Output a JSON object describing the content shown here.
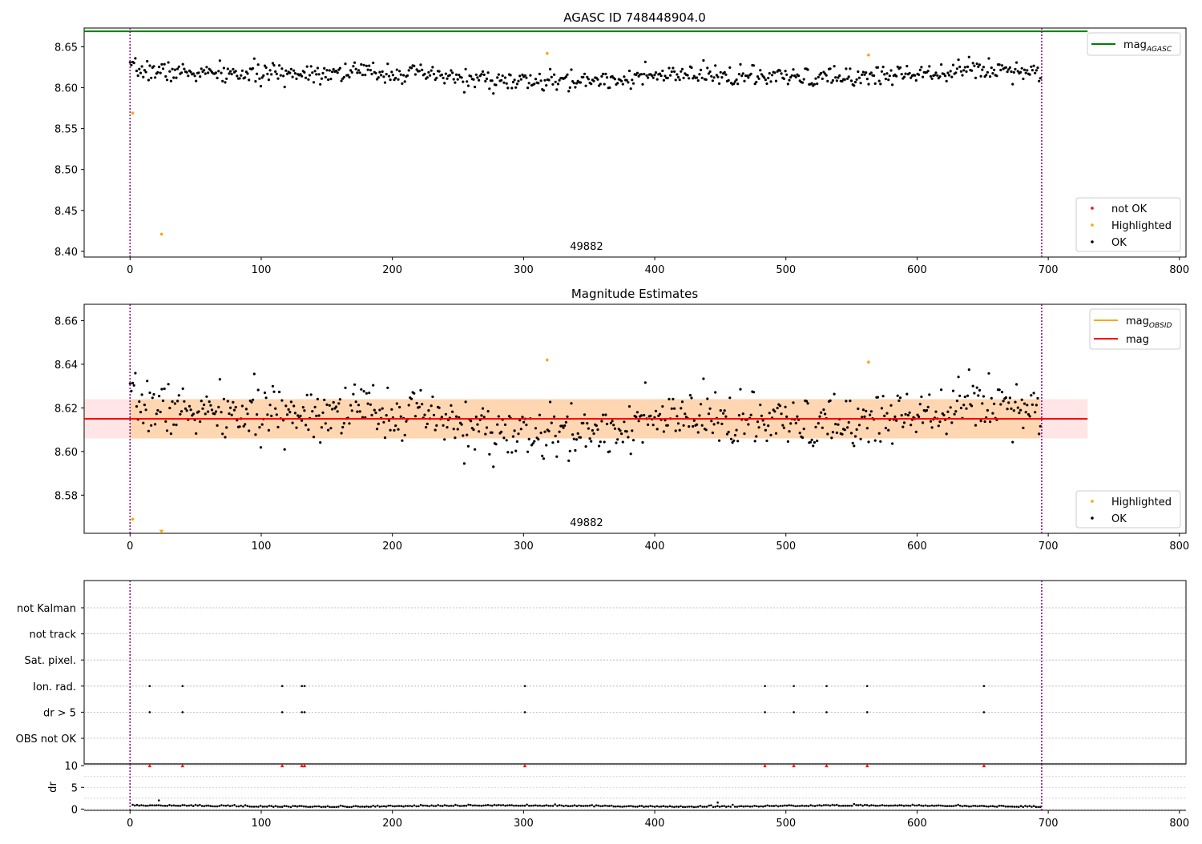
{
  "chart_data": [
    {
      "type": "scatter",
      "title": "AGASC ID 748448904.0",
      "xlim": [
        -35,
        805
      ],
      "ylim": [
        8.393,
        8.673
      ],
      "xticks": [
        0,
        100,
        200,
        300,
        400,
        500,
        600,
        700,
        800
      ],
      "yticks": [
        8.4,
        8.45,
        8.5,
        8.55,
        8.6,
        8.65
      ],
      "ytick_labels": [
        "8.40",
        "8.45",
        "8.50",
        "8.55",
        "8.60",
        "8.65"
      ],
      "annotation": "49882",
      "annotation_x": 348,
      "obs_start": 0,
      "obs_end": 695,
      "mag_agasc": {
        "value": 8.669,
        "x_range": [
          -35,
          730
        ],
        "color": "#008000"
      },
      "legend_top": {
        "entries": [
          {
            "label": "mag",
            "sub": "AGASC",
            "color": "#008000"
          }
        ]
      },
      "legend_bottom": {
        "entries": [
          {
            "label": "not OK",
            "color": "#ff0000"
          },
          {
            "label": "Highlighted",
            "color": "#ffa500"
          },
          {
            "label": "OK",
            "color": "#000000"
          }
        ]
      },
      "ok_series": {
        "x_range": [
          0,
          694
        ],
        "n": 690,
        "base": 8.614,
        "amplitude": 0.012,
        "noise": 0.006,
        "seed": 7
      },
      "highlighted": [
        [
          2,
          8.569
        ],
        [
          24,
          8.421
        ],
        [
          318,
          8.642
        ],
        [
          563,
          8.64
        ]
      ]
    },
    {
      "type": "scatter",
      "title": "Magnitude Estimates",
      "xlim": [
        -35,
        805
      ],
      "ylim": [
        8.5625,
        8.6675
      ],
      "xticks": [
        0,
        100,
        200,
        300,
        400,
        500,
        600,
        700,
        800
      ],
      "yticks": [
        8.58,
        8.6,
        8.62,
        8.64,
        8.66
      ],
      "ytick_labels": [
        "8.58",
        "8.60",
        "8.62",
        "8.64",
        "8.66"
      ],
      "annotation": "49882",
      "annotation_x": 348,
      "mag": {
        "value": 8.615,
        "x_range": [
          -35,
          730
        ],
        "color": "#ff0000"
      },
      "mag_band": {
        "low": 8.606,
        "high": 8.624,
        "x_range": [
          -35,
          730
        ]
      },
      "mag_obsid": {
        "value": 8.615,
        "low": 8.606,
        "high": 8.624,
        "x_range": [
          0,
          694
        ],
        "color": "#ffa500"
      },
      "legend_top": {
        "entries": [
          {
            "label": "mag",
            "sub": "OBSID",
            "color": "#ffa500"
          },
          {
            "label": "mag",
            "color": "#ff0000"
          }
        ]
      },
      "legend_bottom": {
        "entries": [
          {
            "label": "Highlighted",
            "color": "#ffa500"
          },
          {
            "label": "OK",
            "color": "#000000"
          }
        ]
      },
      "highlighted": [
        [
          2,
          8.569
        ],
        [
          318,
          8.642
        ],
        [
          563,
          8.641
        ]
      ],
      "highlighted_clipped": [
        [
          24,
          8.563
        ]
      ]
    },
    {
      "type": "scatter",
      "title": "",
      "xlim": [
        -35,
        805
      ],
      "flag_rows": [
        "not Kalman",
        "not track",
        "Sat. pixel.",
        "Ion. rad.",
        "dr > 5",
        "OBS not OK"
      ],
      "flag_points": {
        "Ion. rad.": [
          15,
          40,
          116,
          131,
          133,
          301,
          484,
          506,
          531,
          562,
          651
        ],
        "dr > 5": [
          15,
          40,
          116,
          131,
          133,
          301,
          484,
          506,
          531,
          562,
          651
        ]
      }
    },
    {
      "type": "scatter",
      "title": "",
      "xlim": [
        -35,
        805
      ],
      "ylim": [
        -0.3,
        10.4
      ],
      "xticks": [
        0,
        100,
        200,
        300,
        400,
        500,
        600,
        700,
        800
      ],
      "yticks": [
        0,
        5,
        10
      ],
      "ytick_labels": [
        "0",
        "5",
        "10"
      ],
      "ylabel": "dr",
      "dr_series": {
        "x_range": [
          2,
          694
        ],
        "n": 420,
        "base": 0.7,
        "noise": 0.25,
        "seed": 13
      },
      "dr_extras": [
        [
          22,
          2.0
        ],
        [
          448,
          1.5
        ]
      ],
      "clipped_x": [
        15,
        40,
        116,
        131,
        133,
        301,
        484,
        506,
        531,
        562,
        651
      ]
    }
  ]
}
